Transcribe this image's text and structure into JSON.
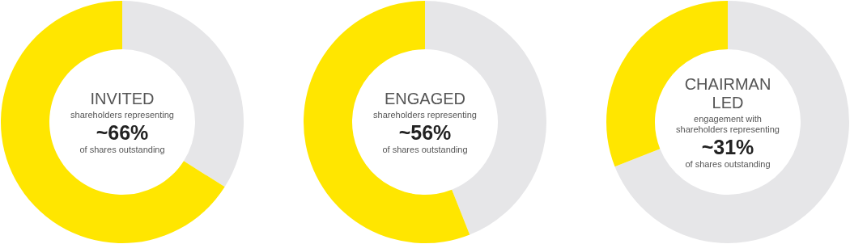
{
  "chart_data": [
    {
      "type": "donut",
      "title": "INVITED",
      "categories": [
        null,
        null
      ],
      "values": [
        34,
        66
      ],
      "colors": [
        "#e6e6e8",
        "#ffe600"
      ],
      "annotations": [
        "shareholders representing",
        "~66%",
        "of shares outstanding"
      ]
    },
    {
      "type": "donut",
      "title": "ENGAGED",
      "categories": [
        null,
        null
      ],
      "values": [
        44,
        56
      ],
      "colors": [
        "#e6e6e8",
        "#ffe600"
      ],
      "annotations": [
        "shareholders representing",
        "~56%",
        "of shares outstanding"
      ]
    },
    {
      "type": "donut",
      "title": "CHAIRMAN LED",
      "categories": [
        null,
        null
      ],
      "values": [
        69,
        31
      ],
      "colors": [
        "#e6e6e8",
        "#ffe600"
      ],
      "annotations": [
        "engagement with shareholders representing",
        "~31%",
        "of shares outstanding"
      ]
    }
  ]
}
